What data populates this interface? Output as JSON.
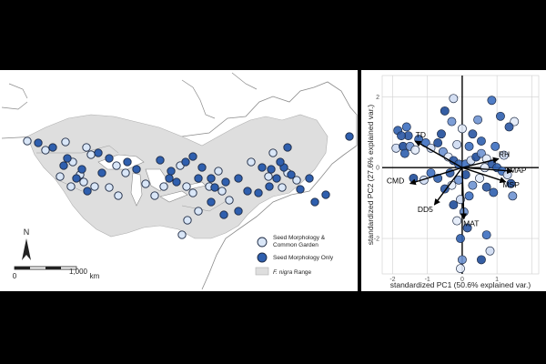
{
  "chart_data": [
    {
      "type": "map",
      "legend": {
        "items": [
          {
            "label_lines": [
              "Seed Morphology &",
              "Common Garden"
            ],
            "marker": "open-circle",
            "color": "#d9e6f7"
          },
          {
            "label_lines": [
              "Seed Morphology Only"
            ],
            "marker": "filled-circle",
            "color": "#2f5fae"
          },
          {
            "label_prefix": "F. nigra",
            "label_suffix": " Range",
            "marker": "gray-box",
            "color": "#dedede"
          }
        ]
      },
      "north_label": "N",
      "scale_bar": {
        "start_label": "0",
        "end_label": "1,000",
        "unit": "km"
      },
      "colors": {
        "land": "#ffffff",
        "range": "#dedede",
        "outline": "#8a8a8a",
        "site_filled": "#2f5fae",
        "site_open": "#d9e6f7"
      }
    },
    {
      "type": "scatter",
      "subtype": "pca-biplot",
      "xlabel": "standardized PC1 (50.6% explained var.)",
      "ylabel": "standardized PC2 (27.6% explained var.)",
      "xlim": [
        -2.3,
        2.2
      ],
      "ylim": [
        -3.0,
        2.6
      ],
      "x_ticks": [
        -2,
        -1,
        0,
        1
      ],
      "x_tick_labels": [
        "-2",
        "-1",
        "0",
        "1"
      ],
      "y_ticks": [
        2,
        0,
        -2
      ],
      "y_tick_labels": [
        "2",
        "0",
        "-2"
      ],
      "grid": true,
      "axes_lines_at_zero": true,
      "loadings": [
        {
          "name": "TD",
          "x": -1.35,
          "y": 0.75
        },
        {
          "name": "RH",
          "x": 1.05,
          "y": 0.25
        },
        {
          "name": "MAP",
          "x": 1.45,
          "y": -0.1
        },
        {
          "name": "MSP",
          "x": 1.25,
          "y": -0.4
        },
        {
          "name": "CMD",
          "x": -1.5,
          "y": -0.45
        },
        {
          "name": "DD5",
          "x": -0.8,
          "y": -1.05
        },
        {
          "name": "MAT",
          "x": 0.05,
          "y": -1.45
        }
      ],
      "points": [
        {
          "x": -1.85,
          "y": 1.05
        },
        {
          "x": -1.6,
          "y": 1.15
        },
        {
          "x": -1.9,
          "y": 0.55
        },
        {
          "x": -1.7,
          "y": 0.6
        },
        {
          "x": -1.5,
          "y": 0.6
        },
        {
          "x": -1.35,
          "y": 0.5
        },
        {
          "x": -1.55,
          "y": 0.9
        },
        {
          "x": -1.25,
          "y": 0.8
        },
        {
          "x": -1.05,
          "y": 0.7
        },
        {
          "x": -0.9,
          "y": 0.55
        },
        {
          "x": -0.7,
          "y": 0.7
        },
        {
          "x": -0.55,
          "y": 0.45
        },
        {
          "x": -0.4,
          "y": 0.3
        },
        {
          "x": -0.25,
          "y": 0.2
        },
        {
          "x": -0.1,
          "y": 0.1
        },
        {
          "x": 0.1,
          "y": 0.1
        },
        {
          "x": 0.25,
          "y": 0.2
        },
        {
          "x": 0.4,
          "y": 0.3
        },
        {
          "x": 0.55,
          "y": 0.4
        },
        {
          "x": 0.7,
          "y": 0.25
        },
        {
          "x": 0.85,
          "y": 0.1
        },
        {
          "x": 1.0,
          "y": 0.0
        },
        {
          "x": 1.15,
          "y": -0.1
        },
        {
          "x": 1.3,
          "y": -0.2
        },
        {
          "x": 1.4,
          "y": -0.45
        },
        {
          "x": 1.45,
          "y": -0.8
        },
        {
          "x": 1.5,
          "y": 1.3
        },
        {
          "x": 1.35,
          "y": 1.15
        },
        {
          "x": 1.1,
          "y": 1.45
        },
        {
          "x": 0.85,
          "y": 1.9
        },
        {
          "x": -0.25,
          "y": 1.95
        },
        {
          "x": -0.5,
          "y": 1.6
        },
        {
          "x": -0.3,
          "y": 1.3
        },
        {
          "x": 0.0,
          "y": 1.1
        },
        {
          "x": 0.3,
          "y": 0.95
        },
        {
          "x": 0.55,
          "y": 0.75
        },
        {
          "x": 0.2,
          "y": 0.6
        },
        {
          "x": -0.15,
          "y": 0.65
        },
        {
          "x": 0.1,
          "y": -0.2
        },
        {
          "x": -0.1,
          "y": -0.35
        },
        {
          "x": -0.3,
          "y": -0.5
        },
        {
          "x": -0.5,
          "y": -0.6
        },
        {
          "x": -0.7,
          "y": -0.3
        },
        {
          "x": -0.9,
          "y": -0.15
        },
        {
          "x": -1.1,
          "y": -0.35
        },
        {
          "x": -1.4,
          "y": -0.3
        },
        {
          "x": 0.3,
          "y": -0.5
        },
        {
          "x": 0.5,
          "y": -0.3
        },
        {
          "x": 0.7,
          "y": -0.55
        },
        {
          "x": 0.9,
          "y": -0.7
        },
        {
          "x": 0.2,
          "y": -0.8
        },
        {
          "x": -0.05,
          "y": -0.9
        },
        {
          "x": -0.25,
          "y": -1.05
        },
        {
          "x": 0.05,
          "y": -1.25
        },
        {
          "x": -0.15,
          "y": -1.5
        },
        {
          "x": 0.15,
          "y": -1.7
        },
        {
          "x": -0.05,
          "y": -2.0
        },
        {
          "x": 0.7,
          "y": -1.9
        },
        {
          "x": 0.8,
          "y": -2.35
        },
        {
          "x": 0.55,
          "y": -2.6
        },
        {
          "x": 0.0,
          "y": -2.6
        },
        {
          "x": -0.05,
          "y": -2.85
        },
        {
          "x": -1.75,
          "y": 0.9
        },
        {
          "x": -1.65,
          "y": 0.4
        },
        {
          "x": 0.95,
          "y": 0.6
        },
        {
          "x": 1.2,
          "y": 0.35
        },
        {
          "x": -0.6,
          "y": 0.95
        },
        {
          "x": 0.45,
          "y": 1.35
        },
        {
          "x": 0.65,
          "y": 0.0
        },
        {
          "x": -0.35,
          "y": -0.15
        }
      ]
    }
  ]
}
